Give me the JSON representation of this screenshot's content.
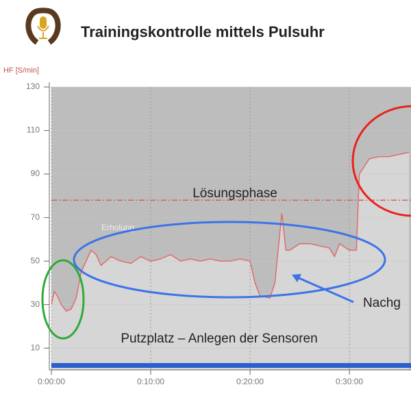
{
  "header": {
    "title": "Trainingskontrolle mittels Pulsuhr"
  },
  "chart_data": {
    "type": "line",
    "y_label": "HF [S/min]",
    "x": [
      0,
      0.3,
      0.6,
      1,
      1.5,
      2,
      2.5,
      3,
      3.5,
      4,
      4.5,
      5,
      6,
      7,
      8,
      9,
      10,
      11,
      12,
      13,
      14,
      15,
      16,
      17,
      18,
      19,
      20,
      20.5,
      21,
      22,
      22.5,
      23.2,
      23.6,
      24,
      25,
      26,
      27,
      28,
      28.5,
      29,
      30,
      30.7,
      31,
      32,
      33,
      34,
      35,
      36
    ],
    "values": [
      30,
      36,
      34,
      30,
      27,
      28,
      33,
      45,
      50,
      55,
      53,
      48,
      52,
      50,
      49,
      52,
      50,
      51,
      53,
      50,
      51,
      50,
      51,
      50,
      50,
      51,
      50,
      40,
      34,
      33,
      40,
      72,
      55,
      55,
      58,
      58,
      57,
      56,
      52,
      58,
      55,
      55,
      90,
      97,
      98,
      98,
      99,
      100
    ],
    "color": "#e06666",
    "reference_line": 78,
    "xlim": [
      0,
      36.2
    ],
    "ylim": [
      0,
      130
    ],
    "xticks": [
      {
        "value": 0,
        "label": "0:00:00"
      },
      {
        "value": 10,
        "label": "0:10:00"
      },
      {
        "value": 20,
        "label": "0:20:00"
      },
      {
        "value": 30,
        "label": "0:30:00"
      }
    ],
    "yticks": [
      10,
      30,
      50,
      70,
      90,
      110,
      130
    ],
    "grid": true,
    "annotations": [
      "Lösungsphase",
      "Erholung",
      "Putzplatz – Anlegen der Sensoren",
      "Nachg"
    ]
  }
}
